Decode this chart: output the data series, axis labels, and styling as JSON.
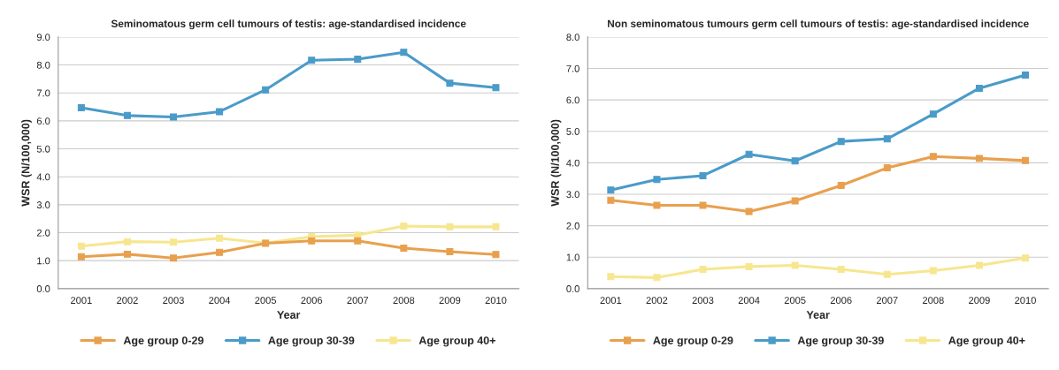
{
  "chart_data": [
    {
      "type": "line",
      "title": "Seminomatous germ cell tumours of testis: age-standardised incidence",
      "xlabel": "Year",
      "ylabel": "WSR (N/100,000)",
      "categories": [
        "2001",
        "2002",
        "2003",
        "2004",
        "2005",
        "2006",
        "2007",
        "2008",
        "2009",
        "2010"
      ],
      "series": [
        {
          "name": "Age group 0-29",
          "color": "#e8a04e",
          "values": [
            1.14,
            1.23,
            1.09,
            1.3,
            1.62,
            1.71,
            1.71,
            1.45,
            1.32,
            1.22
          ]
        },
        {
          "name": "Age group 30-39",
          "color": "#4a9bc9",
          "values": [
            6.47,
            6.19,
            6.14,
            6.33,
            7.11,
            8.17,
            8.21,
            8.45,
            7.35,
            7.19
          ]
        },
        {
          "name": "Age group 40+",
          "color": "#f7e690",
          "values": [
            1.52,
            1.68,
            1.66,
            1.8,
            1.63,
            1.86,
            1.91,
            2.24,
            2.21,
            2.21
          ]
        }
      ],
      "ylim": [
        0,
        9
      ],
      "yticks": [
        {
          "value": 0,
          "label": "0.0"
        },
        {
          "value": 1,
          "label": "1.0"
        },
        {
          "value": 2,
          "label": "2.0"
        },
        {
          "value": 3,
          "label": "3.0"
        },
        {
          "value": 4,
          "label": "4.0"
        },
        {
          "value": 5,
          "label": "5.0"
        },
        {
          "value": 6,
          "label": "6.0"
        },
        {
          "value": 7,
          "label": "7.0"
        },
        {
          "value": 8,
          "label": "8.0"
        },
        {
          "value": 9,
          "label": "9.0"
        }
      ],
      "grid": "y",
      "legend": "bottom",
      "marker": "square",
      "line_style": "solid"
    },
    {
      "type": "line",
      "title": "Non seminomatous tumours germ cell tumours of testis: age-standardised incidence",
      "xlabel": "Year",
      "ylabel": "WSR (N/100,000)",
      "categories": [
        "2001",
        "2002",
        "2003",
        "2004",
        "2005",
        "2006",
        "2007",
        "2008",
        "2009",
        "2010"
      ],
      "series": [
        {
          "name": "Age group 0-29",
          "color": "#e8a04e",
          "values": [
            2.81,
            2.65,
            2.65,
            2.45,
            2.79,
            3.28,
            3.84,
            4.2,
            4.14,
            4.07
          ]
        },
        {
          "name": "Age group 30-39",
          "color": "#4a9bc9",
          "values": [
            3.13,
            3.47,
            3.59,
            4.27,
            4.06,
            4.68,
            4.76,
            5.55,
            6.37,
            6.79
          ]
        },
        {
          "name": "Age group 40+",
          "color": "#f7e690",
          "values": [
            0.38,
            0.35,
            0.61,
            0.7,
            0.74,
            0.61,
            0.45,
            0.57,
            0.74,
            0.97
          ]
        }
      ],
      "ylim": [
        0,
        8
      ],
      "yticks": [
        {
          "value": 0,
          "label": "0.0"
        },
        {
          "value": 1,
          "label": "1.0"
        },
        {
          "value": 2,
          "label": "2.0"
        },
        {
          "value": 3,
          "label": "3.0"
        },
        {
          "value": 4,
          "label": "4.0"
        },
        {
          "value": 5,
          "label": "5.0"
        },
        {
          "value": 6,
          "label": "6.0"
        },
        {
          "value": 7,
          "label": "7.0"
        },
        {
          "value": 8,
          "label": "8.0"
        }
      ],
      "grid": "y",
      "legend": "bottom",
      "marker": "square",
      "line_style": "solid"
    }
  ]
}
